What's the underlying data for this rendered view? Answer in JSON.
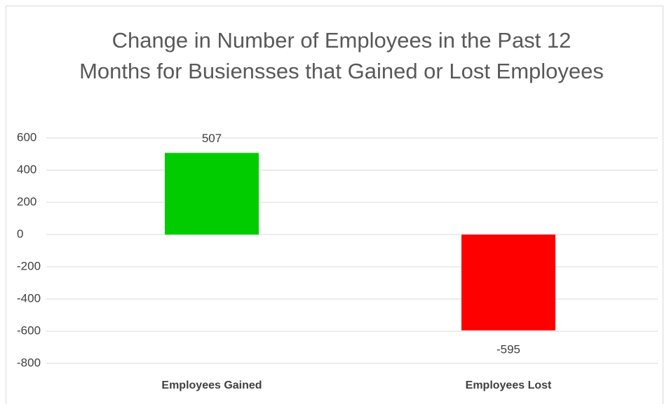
{
  "chart_data": {
    "type": "bar",
    "title": "Change in Number of Employees in the Past 12 Months for Busiensses that Gained or Lost Employees",
    "categories": [
      "Employees Gained",
      "Employees Lost"
    ],
    "values": [
      507,
      -595
    ],
    "colors": [
      "#00cc00",
      "#ff0000"
    ],
    "ylim": [
      -800,
      600
    ],
    "yticks": [
      -800,
      -600,
      -400,
      -200,
      0,
      200,
      400,
      600
    ],
    "grid": true
  }
}
